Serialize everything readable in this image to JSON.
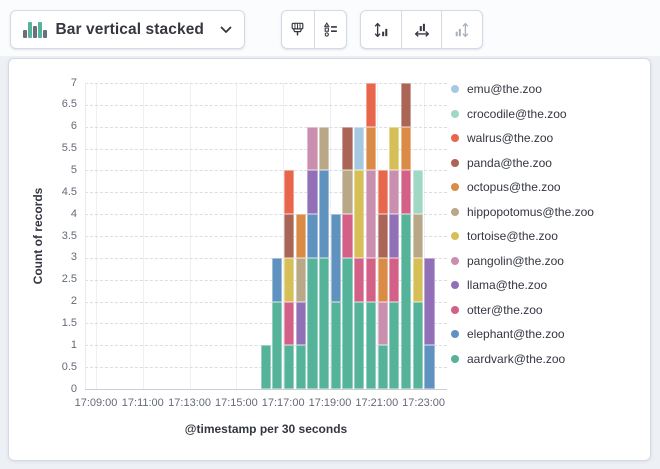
{
  "toolbar": {
    "chart_type_selector": {
      "label": "Bar vertical stacked",
      "icon": "bar-vertical-stacked-icon"
    },
    "style_buttons": [
      {
        "icon": "paintbrush-icon"
      },
      {
        "icon": "legend-settings-icon"
      }
    ],
    "axis_buttons": [
      {
        "icon": "left-axis-icon",
        "disabled": false
      },
      {
        "icon": "bottom-axis-icon",
        "disabled": false
      },
      {
        "icon": "right-axis-icon",
        "disabled": true
      }
    ],
    "icon_colors": {
      "bars_green": "#54b399",
      "bars_gray": "#69707d",
      "enabled": "#343741",
      "disabled": "#a9b1bf"
    }
  },
  "chart_data": {
    "type": "bar",
    "stacked": true,
    "orientation": "vertical",
    "title": "",
    "xlabel": "@timestamp per 30 seconds",
    "ylabel": "Count of records",
    "ylim": [
      0,
      7
    ],
    "y_tick_step": 0.5,
    "grid": true,
    "legend_position": "right",
    "x_tick_labels": [
      "17:09:00",
      "17:11:00",
      "17:13:00",
      "17:15:00",
      "17:17:00",
      "17:19:00",
      "17:21:00",
      "17:23:00"
    ],
    "x_tick_interval_seconds": 120,
    "bucket_seconds": 30,
    "categories": [
      "17:16:00",
      "17:16:30",
      "17:17:00",
      "17:17:30",
      "17:18:00",
      "17:18:30",
      "17:19:00",
      "17:19:30",
      "17:20:00",
      "17:20:30",
      "17:21:00",
      "17:21:30",
      "17:22:00",
      "17:22:30",
      "17:23:00"
    ],
    "series": [
      {
        "name": "emu@the.zoo",
        "color": "#a6c9e2",
        "values": [
          0,
          0,
          0,
          0,
          0,
          0,
          0,
          0,
          1,
          0,
          0,
          0,
          0,
          0,
          0
        ]
      },
      {
        "name": "crocodile@the.zoo",
        "color": "#9fd8c3",
        "values": [
          0,
          0,
          0,
          0,
          0,
          0,
          0,
          0,
          0,
          0,
          0,
          0,
          0,
          1,
          0
        ]
      },
      {
        "name": "walrus@the.zoo",
        "color": "#e7664c",
        "values": [
          0,
          0,
          1,
          0,
          0,
          0,
          0,
          0,
          0,
          1,
          1,
          0,
          0,
          0,
          0
        ]
      },
      {
        "name": "panda@the.zoo",
        "color": "#aa6556",
        "values": [
          0,
          0,
          1,
          0,
          0,
          0,
          0,
          1,
          0,
          0,
          1,
          0,
          1,
          0,
          0
        ]
      },
      {
        "name": "octopus@the.zoo",
        "color": "#da8b45",
        "values": [
          0,
          0,
          0,
          1,
          0,
          0,
          0,
          0,
          0,
          1,
          1,
          0,
          1,
          0,
          0
        ]
      },
      {
        "name": "hippopotomus@the.zoo",
        "color": "#b9a888",
        "values": [
          0,
          0,
          0,
          1,
          0,
          1,
          0,
          1,
          0,
          0,
          0,
          0,
          0,
          1,
          0
        ]
      },
      {
        "name": "tortoise@the.zoo",
        "color": "#d6bf57",
        "values": [
          0,
          0,
          1,
          0,
          0,
          0,
          0,
          0,
          2,
          0,
          0,
          1,
          0,
          1,
          0
        ]
      },
      {
        "name": "pangolin@the.zoo",
        "color": "#ca8eae",
        "values": [
          0,
          0,
          0,
          0,
          1,
          0,
          0,
          0,
          0,
          2,
          1,
          1,
          0,
          0,
          0
        ]
      },
      {
        "name": "llama@the.zoo",
        "color": "#9170b8",
        "values": [
          0,
          0,
          0,
          1,
          1,
          0,
          0,
          0,
          0,
          0,
          0,
          1,
          0,
          0,
          2
        ]
      },
      {
        "name": "otter@the.zoo",
        "color": "#d36086",
        "values": [
          0,
          0,
          1,
          0,
          0,
          0,
          0,
          1,
          1,
          1,
          0,
          1,
          1,
          0,
          0
        ]
      },
      {
        "name": "elephant@the.zoo",
        "color": "#6092c0",
        "values": [
          0,
          1,
          0,
          0,
          1,
          2,
          2,
          0,
          0,
          0,
          0,
          0,
          0,
          0,
          1
        ]
      },
      {
        "name": "aardvark@the.zoo",
        "color": "#54b399",
        "values": [
          1,
          2,
          1,
          1,
          3,
          3,
          2,
          3,
          2,
          2,
          1,
          2,
          4,
          2,
          0
        ]
      }
    ]
  }
}
